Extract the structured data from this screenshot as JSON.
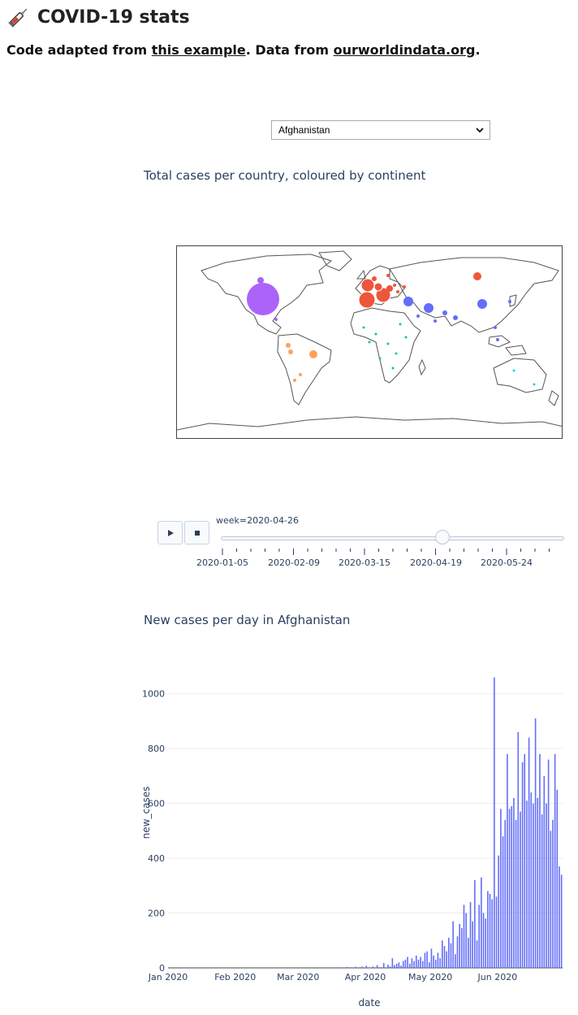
{
  "header": {
    "title": "COVID-19 stats",
    "subtitle_prefix": "Code adapted from ",
    "link1": "this example",
    "subtitle_middle": ". Data from ",
    "link2": "ourworldindata.org",
    "subtitle_suffix": "."
  },
  "country_select": {
    "selected": "Afghanistan"
  },
  "map_chart": {
    "title": "Total cases per country, coloured by continent",
    "slider_label": "week=2020-04-26",
    "slider_ticks": [
      "2020-01-05",
      "2020-02-09",
      "2020-03-15",
      "2020-04-19",
      "2020-05-24"
    ],
    "slider_value_fraction": 0.67,
    "colors": {
      "north_america": "#ab63fa",
      "europe": "#ef553b",
      "asia": "#636efa",
      "south_america": "#ffa15a",
      "africa": "#00cc96",
      "oceania": "#19d3f3"
    }
  },
  "chart_data": {
    "type": "bar",
    "title": "New cases per day in Afghanistan",
    "xlabel": "date",
    "ylabel": "new_cases",
    "ylim": [
      0,
      1100
    ],
    "yticks": [
      0,
      200,
      400,
      600,
      800,
      1000
    ],
    "xtick_labels": [
      "Jan 2020",
      "Feb 2020",
      "Mar 2020",
      "Apr 2020",
      "May 2020",
      "Jun 2020"
    ],
    "x_start": "2020-01-01",
    "bar_color": "#636efa",
    "values": [
      0,
      0,
      0,
      0,
      0,
      0,
      0,
      0,
      0,
      0,
      0,
      0,
      0,
      0,
      0,
      0,
      0,
      0,
      0,
      0,
      0,
      0,
      0,
      0,
      0,
      0,
      0,
      0,
      0,
      0,
      0,
      0,
      0,
      0,
      0,
      0,
      0,
      0,
      0,
      0,
      0,
      0,
      0,
      0,
      0,
      0,
      0,
      0,
      0,
      0,
      0,
      0,
      0,
      0,
      0,
      0,
      0,
      0,
      0,
      0,
      0,
      0,
      0,
      0,
      1,
      0,
      0,
      0,
      0,
      0,
      0,
      2,
      0,
      0,
      0,
      0,
      0,
      0,
      0,
      0,
      1,
      0,
      3,
      0,
      0,
      2,
      4,
      0,
      0,
      5,
      0,
      8,
      0,
      2,
      5,
      0,
      10,
      0,
      0,
      18,
      0,
      12,
      5,
      35,
      10,
      15,
      20,
      8,
      25,
      30,
      40,
      15,
      35,
      25,
      45,
      30,
      40,
      25,
      55,
      60,
      20,
      70,
      45,
      30,
      55,
      35,
      100,
      80,
      60,
      110,
      90,
      170,
      50,
      115,
      160,
      145,
      230,
      200,
      110,
      240,
      170,
      320,
      100,
      230,
      330,
      200,
      180,
      280,
      270,
      250,
      1060,
      260,
      410,
      580,
      480,
      540,
      780,
      580,
      590,
      620,
      540,
      860,
      570,
      750,
      780,
      610,
      840,
      640,
      600,
      910,
      620,
      780,
      560,
      700,
      600,
      760,
      500,
      540,
      780,
      650,
      370,
      340
    ]
  }
}
